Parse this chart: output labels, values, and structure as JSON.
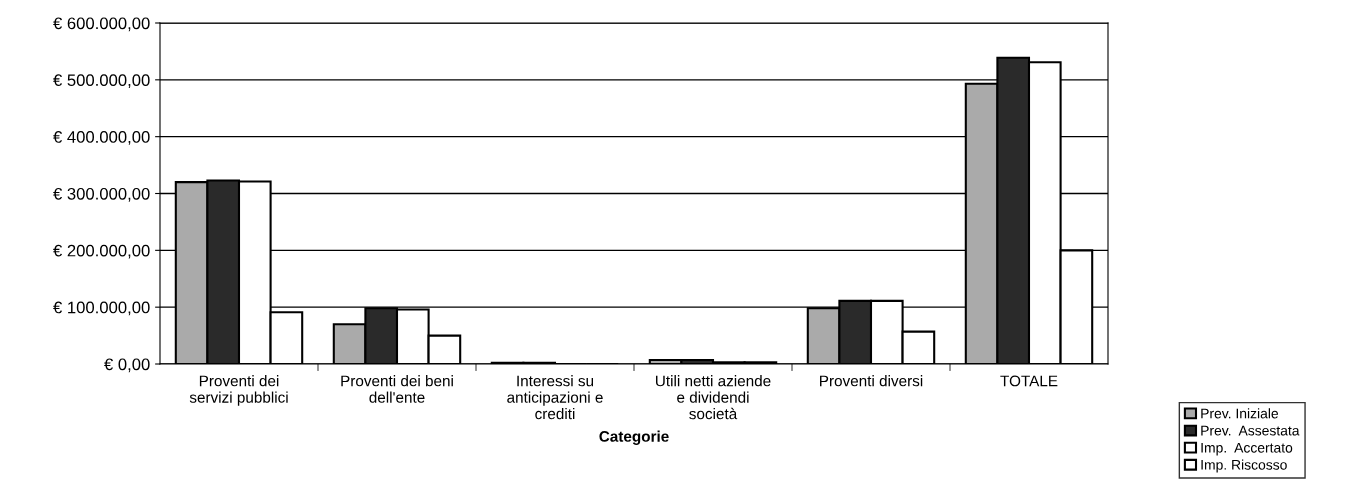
{
  "chart_data": {
    "type": "bar",
    "xlabel": "Categorie",
    "categories": [
      "Proventi dei\nservizi pubblici",
      "Proventi dei beni\ndell'ente",
      "Interessi su\nanticipazioni e\ncrediti",
      "Utili netti aziende\ne dividendi\nsocietà",
      "Proventi diversi",
      "TOTALE"
    ],
    "series": [
      {
        "name": "Prev. Iniziale",
        "color": "#aaaaaa",
        "values": [
          320000,
          70000,
          2000,
          7000,
          98000,
          493000
        ]
      },
      {
        "name": "Prev.  Assestata",
        "color": "#2a2a2a",
        "values": [
          323000,
          98000,
          2000,
          7000,
          111000,
          539000
        ]
      },
      {
        "name": "Imp.  Accertato",
        "color": "#ffffff",
        "values": [
          321000,
          96000,
          null,
          3000,
          111000,
          531000
        ]
      },
      {
        "name": "Imp. Riscosso",
        "color": "#ffffff",
        "values": [
          91000,
          50000,
          null,
          3000,
          57000,
          200000
        ]
      }
    ],
    "ylim": [
      0,
      600000
    ],
    "yticks": [
      {
        "value": 0,
        "label": "€ 0,00"
      },
      {
        "value": 100000,
        "label": "€ 100.000,00"
      },
      {
        "value": 200000,
        "label": "€ 200.000,00"
      },
      {
        "value": 300000,
        "label": "€ 300.000,00"
      },
      {
        "value": 400000,
        "label": "€ 400.000,00"
      },
      {
        "value": 500000,
        "label": "€ 500.000,00"
      },
      {
        "value": 600000,
        "label": "€ 600.000,00"
      }
    ],
    "grid": "y",
    "legend": "bottom right"
  }
}
